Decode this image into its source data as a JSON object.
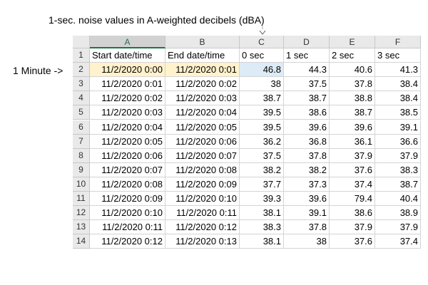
{
  "annotation": {
    "title": "1-sec. noise values in A-weighted decibels (dBA)",
    "row_label": "1 Minute ->"
  },
  "sheet": {
    "column_letters": [
      "A",
      "B",
      "C",
      "D",
      "E",
      "F"
    ],
    "row_numbers": [
      1,
      2,
      3,
      4,
      5,
      6,
      7,
      8,
      9,
      10,
      11,
      12,
      13,
      14
    ],
    "header": [
      "Start date/time",
      "End date/time",
      "0 sec",
      "1 sec",
      "2 sec",
      "3 sec"
    ],
    "rows": [
      [
        "11/2/2020 0:00",
        "11/2/2020 0:01",
        46.8,
        44.3,
        40.6,
        41.3
      ],
      [
        "11/2/2020 0:01",
        "11/2/2020 0:02",
        38,
        37.5,
        37.8,
        38.4
      ],
      [
        "11/2/2020 0:02",
        "11/2/2020 0:03",
        38.7,
        38.7,
        38.8,
        38.4
      ],
      [
        "11/2/2020 0:03",
        "11/2/2020 0:04",
        39.5,
        38.6,
        38.7,
        38.5
      ],
      [
        "11/2/2020 0:04",
        "11/2/2020 0:05",
        39.5,
        39.6,
        39.6,
        39.1
      ],
      [
        "11/2/2020 0:05",
        "11/2/2020 0:06",
        36.2,
        36.8,
        36.1,
        36.6
      ],
      [
        "11/2/2020 0:06",
        "11/2/2020 0:07",
        37.5,
        37.8,
        37.9,
        37.9
      ],
      [
        "11/2/2020 0:07",
        "11/2/2020 0:08",
        38.2,
        38.2,
        37.6,
        38.3
      ],
      [
        "11/2/2020 0:08",
        "11/2/2020 0:09",
        37.7,
        37.3,
        37.4,
        38.7
      ],
      [
        "11/2/2020 0:09",
        "11/2/2020 0:10",
        39.3,
        39.6,
        79.4,
        40.4
      ],
      [
        "11/2/2020 0:10",
        "11/2/2020 0:11",
        38.1,
        39.1,
        38.6,
        38.9
      ],
      [
        "11/2/2020 0:11",
        "11/2/2020 0:12",
        38.3,
        37.8,
        37.9,
        37.9
      ],
      [
        "11/2/2020 0:12",
        "11/2/2020 0:13",
        38.1,
        38,
        37.6,
        37.4
      ]
    ]
  }
}
